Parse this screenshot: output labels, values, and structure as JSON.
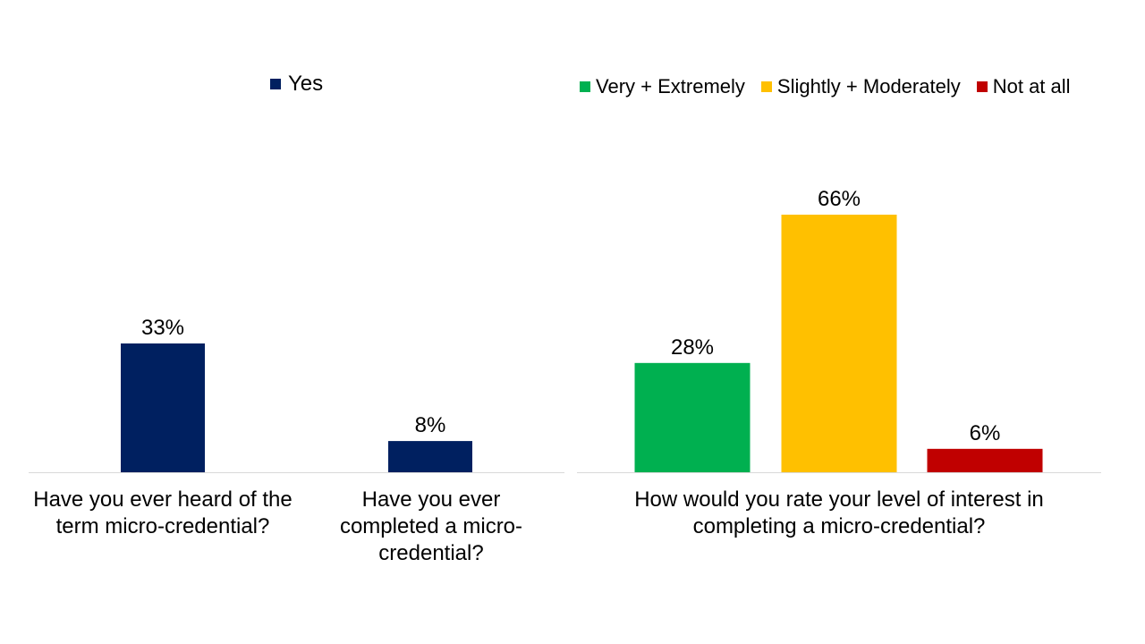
{
  "colors": {
    "navy": "#002060",
    "green": "#00B050",
    "gold": "#FFC000",
    "red": "#C00000",
    "axis": "#D9D9D9"
  },
  "chart_data": [
    {
      "type": "bar",
      "legend": [
        {
          "name": "Yes",
          "color": "#002060"
        }
      ],
      "legend_position": "top",
      "categories": [
        "Have you ever heard of the term micro-credential?",
        "Have you ever completed a micro-credential?"
      ],
      "series": [
        {
          "name": "Yes",
          "values": [
            33,
            8
          ]
        }
      ],
      "value_labels": [
        "33%",
        "8%"
      ],
      "ylim": [
        0,
        66
      ],
      "grid": false
    },
    {
      "type": "bar",
      "legend": [
        {
          "name": "Very + Extremely",
          "color": "#00B050"
        },
        {
          "name": "Slightly + Moderately",
          "color": "#FFC000"
        },
        {
          "name": "Not at all",
          "color": "#C00000"
        }
      ],
      "legend_position": "top",
      "categories": [
        "How would you rate your level of interest in completing a micro-credential?"
      ],
      "series": [
        {
          "name": "Very + Extremely",
          "values": [
            28
          ]
        },
        {
          "name": "Slightly + Moderately",
          "values": [
            66
          ]
        },
        {
          "name": "Not at all",
          "values": [
            6
          ]
        }
      ],
      "value_labels": [
        "28%",
        "66%",
        "6%"
      ],
      "ylim": [
        0,
        66
      ],
      "grid": false
    }
  ]
}
